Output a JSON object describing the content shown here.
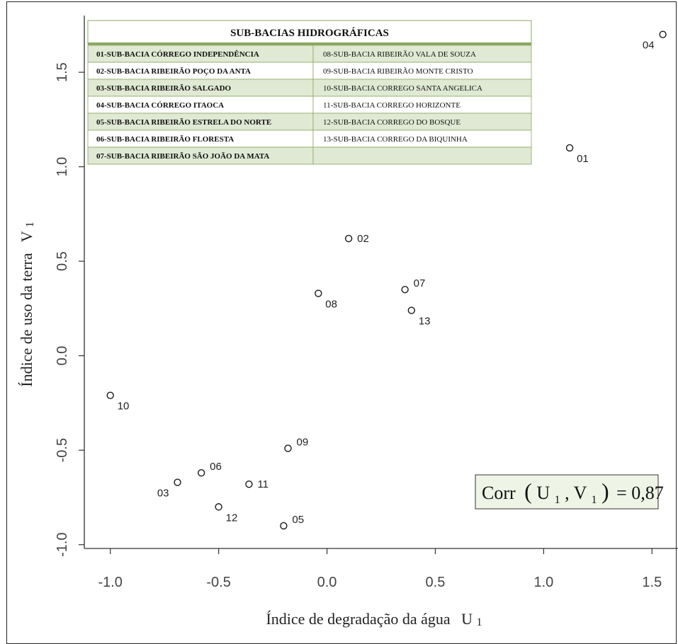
{
  "chart_data": {
    "type": "scatter",
    "xlabel": "Índice de degradação da água",
    "xlabel_var": "U",
    "xlabel_sub": "1",
    "ylabel": "Índice de uso da terra",
    "ylabel_var": "V",
    "ylabel_sub": "1",
    "xlim": [
      -1.12,
      1.62
    ],
    "ylim": [
      -1.02,
      1.8
    ],
    "xticks": [
      -1.0,
      -0.5,
      0.0,
      0.5,
      1.0,
      1.5
    ],
    "xtick_labels": [
      "-1.0",
      "-0.5",
      "0.0",
      "0.5",
      "1.0",
      "1.5"
    ],
    "yticks": [
      -1.0,
      -0.5,
      0.0,
      0.5,
      1.0,
      1.5
    ],
    "ytick_labels": [
      "-1.0",
      "-0.5",
      "0.0",
      "0.5",
      "1.0",
      "1.5"
    ],
    "grid": false,
    "points": [
      {
        "label": "01",
        "x": 1.12,
        "y": 1.1,
        "pos": "below-right"
      },
      {
        "label": "02",
        "x": 0.1,
        "y": 0.62,
        "pos": "right"
      },
      {
        "label": "03",
        "x": -0.69,
        "y": -0.67,
        "pos": "below-left"
      },
      {
        "label": "04",
        "x": 1.55,
        "y": 1.7,
        "pos": "below-left"
      },
      {
        "label": "05",
        "x": -0.2,
        "y": -0.9,
        "pos": "above-right"
      },
      {
        "label": "06",
        "x": -0.58,
        "y": -0.62,
        "pos": "above-right"
      },
      {
        "label": "07",
        "x": 0.36,
        "y": 0.35,
        "pos": "above-right"
      },
      {
        "label": "08",
        "x": -0.04,
        "y": 0.33,
        "pos": "below-right"
      },
      {
        "label": "09",
        "x": -0.18,
        "y": -0.49,
        "pos": "above-right"
      },
      {
        "label": "10",
        "x": -1.0,
        "y": -0.21,
        "pos": "below-right"
      },
      {
        "label": "11",
        "x": -0.36,
        "y": -0.68,
        "pos": "right"
      },
      {
        "label": "12",
        "x": -0.5,
        "y": -0.8,
        "pos": "below-right"
      },
      {
        "label": "13",
        "x": 0.39,
        "y": 0.24,
        "pos": "below-right"
      }
    ],
    "annotation": {
      "prefix": "Corr",
      "u": "U",
      "u_sub": "1",
      "v": "V",
      "v_sub": "1",
      "value": "= 0,87"
    },
    "colors": {
      "axis": "#333333",
      "marker": "#1a1a1a",
      "table_green": "#dfe9d3",
      "table_border": "#8aa860",
      "annotation_bg": "#eef5e6"
    }
  },
  "legend_table": {
    "title": "SUB-BACIAS HIDROGRÁFICAS",
    "rows": [
      [
        "01-SUB-BACIA CÓRREGO INDEPENDÊNCIA",
        "08-SUB-BACIA RIBEIRÃO VALA DE SOUZA"
      ],
      [
        "02-SUB-BACIA RIBEIRÃO POÇO DA ANTA",
        "09-SUB-BACIA RIBEIRÃO MONTE CRISTO"
      ],
      [
        "03-SUB-BACIA RIBEIRÃO SALGADO",
        "10-SUB-BACIA CORREGO SANTA ANGELICA"
      ],
      [
        "04-SUB-BACIA CÓRREGO ITAOCA",
        "11-SUB-BACIA CORREGO HORIZONTE"
      ],
      [
        "05-SUB-BACIA RIBEIRÃO ESTRELA DO NORTE",
        "12-SUB-BACIA CORREGO DO BOSQUE"
      ],
      [
        "06-SUB-BACIA RIBEIRÃO FLORESTA",
        "13-SUB-BACIA CORREGO DA BIQUINHA"
      ],
      [
        "07-SUB-BACIA RIBEIRÃO SÃO JOÃO DA MATA",
        ""
      ]
    ]
  }
}
